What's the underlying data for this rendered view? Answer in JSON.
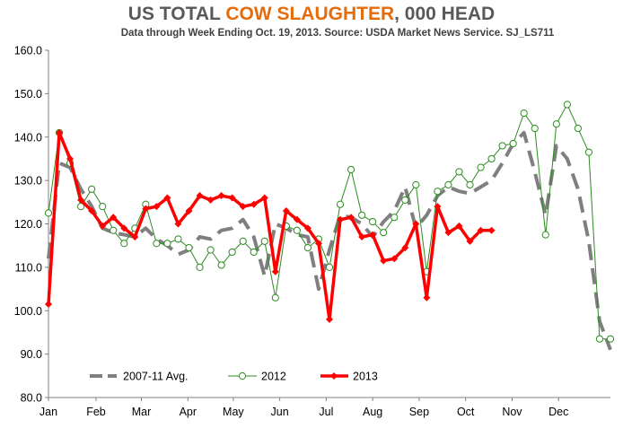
{
  "chart_data": {
    "type": "line",
    "title_parts": [
      "US TOTAL ",
      "COW SLAUGHTER",
      ", 000 HEAD"
    ],
    "subtitle": "Data through Week Ending Oct. 19, 2013.  Source:   USDA Market News Service.  SJ_LS711",
    "ylim": [
      80,
      160
    ],
    "xlim": [
      1,
      53
    ],
    "y_ticks": [
      "80.0",
      "90.0",
      "100.0",
      "110.0",
      "120.0",
      "130.0",
      "140.0",
      "150.0",
      "160.0"
    ],
    "x_tick_labels": [
      "Jan",
      "Feb",
      "Mar",
      "Apr",
      "May",
      "Jun",
      "Jul",
      "Aug",
      "Sep",
      "Oct",
      "Nov",
      "Dec"
    ],
    "x_tick_weeks": [
      1,
      5.4,
      9.6,
      13.9,
      18.1,
      22.4,
      26.7,
      31.0,
      35.3,
      39.6,
      43.9,
      48.2
    ],
    "legend_position": "bottom-left",
    "colors": {
      "avg": "#7f7f7f",
      "y2012": "#2e8b22",
      "y2013": "#ff0000"
    },
    "series": [
      {
        "name": "2007-11 Avg.",
        "style": "dashed",
        "x": [
          1,
          2,
          3,
          4,
          5,
          6,
          7,
          8,
          9,
          10,
          11,
          12,
          13,
          14,
          15,
          16,
          17,
          18,
          19,
          20,
          21,
          22,
          23,
          24,
          25,
          26,
          27,
          28,
          29,
          30,
          31,
          32,
          33,
          34,
          35,
          36,
          37,
          38,
          39,
          40,
          41,
          42,
          43,
          44,
          45,
          46,
          47,
          48,
          49,
          50,
          51,
          52,
          53
        ],
        "values": [
          112,
          134,
          133,
          128,
          124,
          119,
          118,
          117.5,
          117,
          119,
          116.5,
          115,
          113,
          114,
          117,
          116.5,
          118.5,
          119,
          121,
          117,
          108,
          120,
          119,
          117.5,
          117,
          105,
          114,
          122,
          121.5,
          120,
          117,
          120.5,
          123,
          128.5,
          119,
          122,
          126.5,
          128.5,
          127.5,
          127,
          128.5,
          130,
          134,
          138.5,
          141,
          132,
          122,
          138,
          135,
          128,
          116,
          97.5,
          91
        ]
      },
      {
        "name": "2012",
        "style": "line-open-marker",
        "x": [
          1,
          2,
          3,
          4,
          5,
          6,
          7,
          8,
          9,
          10,
          11,
          12,
          13,
          14,
          15,
          16,
          17,
          18,
          19,
          20,
          21,
          22,
          23,
          24,
          25,
          26,
          27,
          28,
          29,
          30,
          31,
          32,
          33,
          34,
          35,
          36,
          37,
          38,
          39,
          40,
          41,
          42,
          43,
          44,
          45,
          46,
          47,
          48,
          49,
          50,
          51,
          52,
          53
        ],
        "values": [
          122.5,
          141,
          134,
          124,
          128,
          124,
          118.5,
          115.5,
          119,
          124.5,
          115.5,
          115.5,
          116.5,
          114.5,
          110,
          114,
          110.5,
          113.5,
          116,
          113.5,
          116,
          103,
          119.5,
          118.5,
          114.5,
          116.5,
          110,
          124.5,
          132.5,
          122,
          120.5,
          118,
          121.5,
          125.5,
          129,
          109,
          127.5,
          129,
          132,
          129,
          133,
          135,
          138,
          138.5,
          145.5,
          142,
          117.5,
          143,
          147.5,
          142,
          136.5,
          93.5,
          93.5
        ]
      },
      {
        "name": "2013",
        "style": "bold-diamond",
        "x": [
          1,
          2,
          3,
          4,
          5,
          6,
          7,
          8,
          9,
          10,
          11,
          12,
          13,
          14,
          15,
          16,
          17,
          18,
          19,
          20,
          21,
          22,
          23,
          24,
          25,
          26,
          27,
          28,
          29,
          30,
          31,
          32,
          33,
          34,
          35,
          36,
          37,
          38,
          39,
          40,
          41,
          42
        ],
        "values": [
          101.5,
          141,
          135,
          125.5,
          123,
          119.5,
          121.5,
          119,
          117,
          123.5,
          124,
          126,
          120,
          123,
          126.5,
          125.5,
          126.5,
          126,
          124,
          124.5,
          126,
          109,
          123,
          121,
          119,
          115.5,
          98,
          121,
          121.5,
          117,
          117.5,
          111.5,
          112,
          114.5,
          120,
          103,
          124,
          118,
          119.5,
          116,
          118.5,
          118.5
        ]
      }
    ]
  }
}
